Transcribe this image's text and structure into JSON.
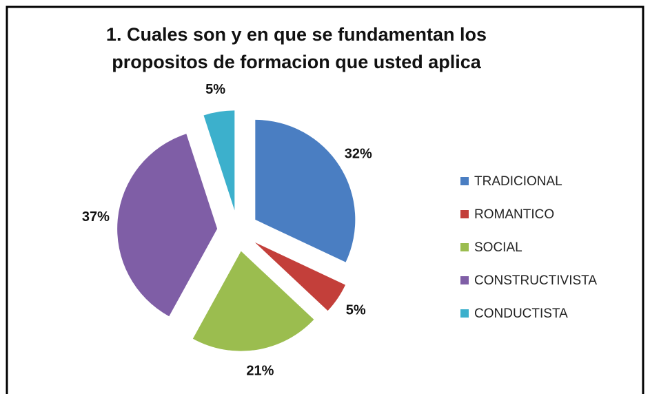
{
  "chart_data": {
    "type": "pie",
    "title": "1. Cuales son y en que se fundamentan  los propositos de formacion que usted  aplica",
    "categories": [
      "TRADICIONAL",
      "ROMANTICO",
      "SOCIAL",
      "CONSTRUCTIVISTA",
      "CONDUCTISTA"
    ],
    "values": [
      32,
      5,
      21,
      37,
      5
    ],
    "value_labels": [
      "32%",
      "5%",
      "21%",
      "37%",
      "5%"
    ],
    "colors": [
      "#4a7ec2",
      "#c33f3a",
      "#9bbd4f",
      "#7f5ea6",
      "#3cb0cc"
    ],
    "legend": "right"
  }
}
